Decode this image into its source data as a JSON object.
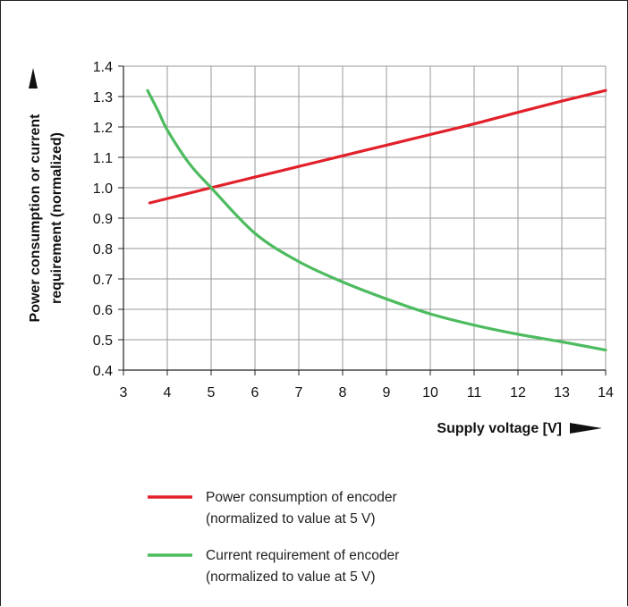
{
  "chart_data": {
    "type": "line",
    "xlabel": "Supply voltage [V]",
    "ylabel_lines": [
      "Power consumption or current",
      "requirement (normalized)"
    ],
    "xlim": [
      3,
      14
    ],
    "ylim": [
      0.4,
      1.4
    ],
    "x_ticks": [
      3,
      4,
      5,
      6,
      7,
      8,
      9,
      10,
      11,
      12,
      13,
      14
    ],
    "y_ticks": [
      "0.4",
      "0.5",
      "0.6",
      "0.7",
      "0.8",
      "0.9",
      "1.0",
      "1.1",
      "1.2",
      "1.3",
      "1.4"
    ],
    "grid": true,
    "series": [
      {
        "key": "power",
        "color": "#e2202a",
        "legend_lines": [
          "Power consumption of encoder",
          "(normalized to value at 5 V)"
        ],
        "x": [
          3.6,
          5,
          6,
          7,
          8,
          9,
          10,
          11,
          12,
          13,
          14
        ],
        "y": [
          0.95,
          1.0,
          1.035,
          1.07,
          1.105,
          1.14,
          1.175,
          1.21,
          1.248,
          1.285,
          1.32
        ]
      },
      {
        "key": "current",
        "color": "#4dbb5f",
        "legend_lines": [
          "Current requirement of encoder",
          "(normalized to value at 5 V)"
        ],
        "x": [
          3.55,
          3.8,
          4,
          4.5,
          5,
          6,
          7,
          8,
          9,
          10,
          11,
          12,
          13,
          14
        ],
        "y": [
          1.32,
          1.25,
          1.19,
          1.08,
          1.0,
          0.85,
          0.757,
          0.69,
          0.634,
          0.585,
          0.548,
          0.518,
          0.493,
          0.466
        ]
      }
    ]
  }
}
